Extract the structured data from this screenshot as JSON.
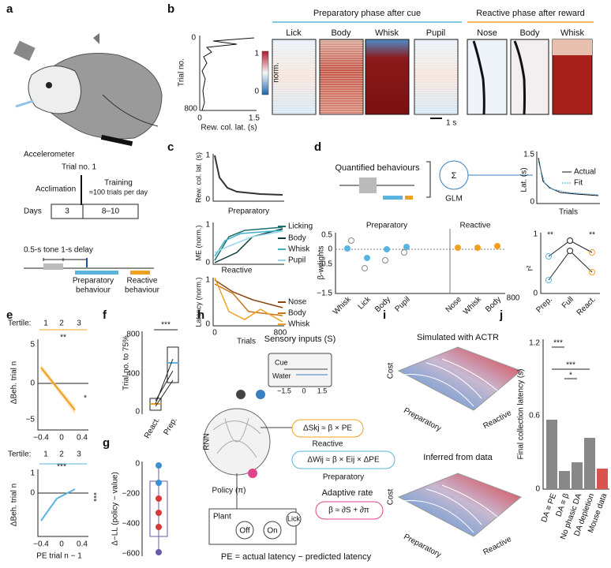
{
  "a": {
    "label": "a",
    "accelerometer": "Accelerometer",
    "trial": "Trial no. 1",
    "acclimation": "Acclimation",
    "training": "Training",
    "training_rate": "≈100 trials per day",
    "days": "Days",
    "days_acclimation": "3",
    "days_training": "8–10",
    "protocol": "0.5-s tone 1-s delay",
    "preparatory": [
      "Preparatory",
      "behaviour"
    ],
    "reactive": [
      "Reactive",
      "behaviour"
    ]
  },
  "b": {
    "label": "b",
    "prep_header": "Preparatory phase after cue",
    "react_header": "Reactive phase after reward",
    "y_title": "Trial no.",
    "y_ticks": [
      "0",
      "800"
    ],
    "x_ticks": [
      "0",
      "1.5"
    ],
    "x_title": "Rew. col. lat. (s)",
    "colorbar_ticks": [
      "1",
      "0"
    ],
    "colorbar_title": "norm.",
    "prep_columns": [
      "Lick",
      "Body",
      "Whisk",
      "Pupil"
    ],
    "react_columns": [
      "Nose",
      "Body",
      "Whisk"
    ],
    "scale": "1 s"
  },
  "c": {
    "label": "c",
    "top_y_title": "Rew. col. lat. (s)",
    "top_y_ticks": [
      "1",
      "0"
    ],
    "mid_title": "Preparatory",
    "mid_y_title": "ME (norm.)",
    "mid_y_ticks": [
      "1",
      "0"
    ],
    "mid_legend": [
      "Licking",
      "Body",
      "Whisk",
      "Pupil"
    ],
    "bottom_title": "Reactive",
    "bottom_y_title": "Latency (norm.)",
    "bottom_y_ticks": [
      "1",
      "0"
    ],
    "bottom_legend": [
      "Nose",
      "Body",
      "Whisk"
    ],
    "x_ticks": [
      "0",
      "800"
    ],
    "x_title": "Trials"
  },
  "d": {
    "label": "d",
    "behaviours": "Quantified behaviours",
    "sum": "Σ",
    "glm": "GLM",
    "fit_y_title": "Lat. (s)",
    "fit_y_ticks": [
      "1.5",
      "0"
    ],
    "fit_legend": [
      "Actual",
      "Fit"
    ],
    "fit_x_title": "Trials",
    "prep_title": "Preparatory",
    "react_title": "Reactive",
    "beta_title": "β-weights",
    "beta_ticks": [
      "0.5",
      "0",
      "−0.5",
      "−1.5"
    ],
    "beta_categories": [
      "Whisk",
      "Lick",
      "Body",
      "Pupil",
      "Nose",
      "Whisk",
      "Body"
    ],
    "beta_extra": "800",
    "r2_title": "r²",
    "r2_ticks": [
      "1",
      "0"
    ],
    "r2_stars": [
      "**",
      "**"
    ],
    "r2_categories": [
      "Prep.",
      "Full",
      "React."
    ]
  },
  "e": {
    "label": "e",
    "top": {
      "tertile": "Tertile:",
      "tertiles": [
        "1",
        "2",
        "3"
      ],
      "stars": "**",
      "side_star": "*",
      "y_title": "ΔBeh. trial n",
      "y_ticks": [
        "5",
        "0",
        "−5"
      ],
      "x_ticks": [
        "−0.4",
        "0",
        "0.4"
      ]
    },
    "bottom": {
      "tertile": "Tertile:",
      "tertiles": [
        "1",
        "2",
        "3"
      ],
      "stars": "***",
      "side_star": "***",
      "y_title": "ΔBeh. trial n",
      "y_ticks": [
        "1",
        "0"
      ],
      "x_ticks": [
        "−0.4",
        "0",
        "0.4"
      ]
    },
    "x_title": "PE trial n − 1"
  },
  "f": {
    "label": "f",
    "y_title": "Trial no. to 75%",
    "y_ticks": [
      "800",
      "400",
      "0"
    ],
    "stars": "***",
    "categories": [
      "React.",
      "Prep."
    ]
  },
  "g": {
    "label": "g",
    "y_title": "Δ−LL (policy − value)",
    "y_ticks": [
      "0",
      "−200",
      "−400",
      "−600"
    ]
  },
  "h": {
    "label": "h",
    "sensory": "Sensory inputs (S)",
    "cue": "Cue",
    "water": "Water",
    "time_ticks": [
      "−1.5",
      "0",
      "1.5"
    ],
    "rnn": "RNN",
    "reactive_rule": "ΔSkj ≈ β × PE",
    "reactive": "Reactive",
    "prep_rule": "ΔWij ≈ β × Eij × ΔPE",
    "preparatory": "Preparatory",
    "policy": "Policy (π)",
    "adaptive": "Adaptive rate",
    "beta_rule": "β ≈ ∂S + ∂π",
    "plant": "Plant",
    "off": "Off",
    "on": "On",
    "lick": "Lick",
    "pe": "PE = actual latency − predicted latency"
  },
  "i": {
    "label": "i",
    "top": {
      "title": "Simulated with ACTR",
      "z_title": "Cost",
      "x_title": "Preparatory",
      "y_title": "Reactive"
    },
    "bottom": {
      "title": "Inferred from data",
      "z_title": "Cost",
      "x_title": "Preparatory",
      "y_title": "Reactive"
    }
  },
  "j": {
    "label": "j",
    "y_title": "Final collection latency (s)",
    "y_ticks": [
      "1.2",
      "0.6",
      "0"
    ],
    "stars": [
      "***",
      "***",
      "*"
    ],
    "categories": [
      "DA ≡ PE",
      "DA ≡ β",
      "No phasic DA",
      "DA depletion",
      "Mouse data"
    ]
  }
}
